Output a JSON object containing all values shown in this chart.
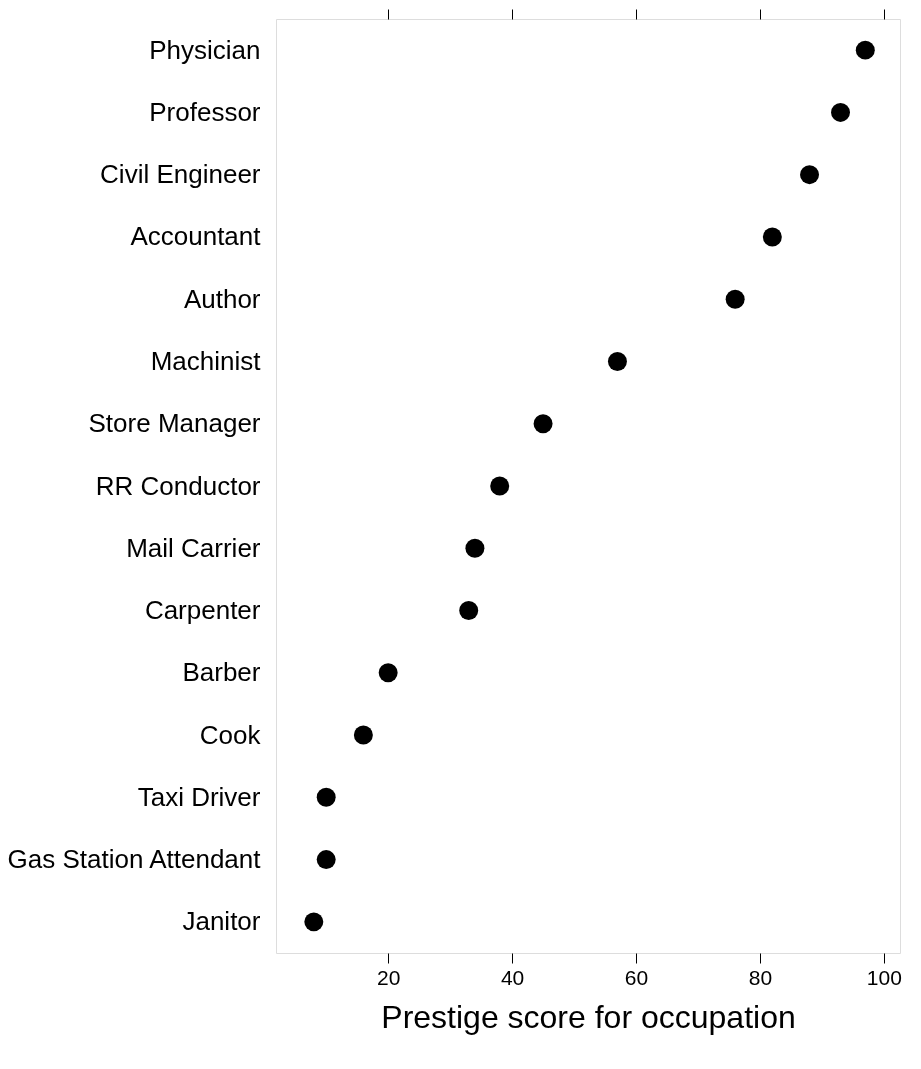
{
  "chart_data": {
    "type": "scatter",
    "orientation": "horizontal",
    "xlabel": "Prestige score for occupation",
    "categories": [
      "Physician",
      "Professor",
      "Civil Engineer",
      "Accountant",
      "Author",
      "Machinist",
      "Store Manager",
      "RR Conductor",
      "Mail Carrier",
      "Carpenter",
      "Barber",
      "Cook",
      "Taxi Driver",
      "Gas Station Attendant",
      "Janitor"
    ],
    "values": [
      97,
      93,
      88,
      82,
      76,
      57,
      45,
      38,
      34,
      33,
      20,
      16,
      10,
      10,
      8
    ],
    "color": "#000000",
    "marker": "circle",
    "grid": false,
    "xlim": [
      1.9,
      102.6
    ],
    "xticks": [
      20,
      40,
      60,
      80,
      100
    ]
  }
}
